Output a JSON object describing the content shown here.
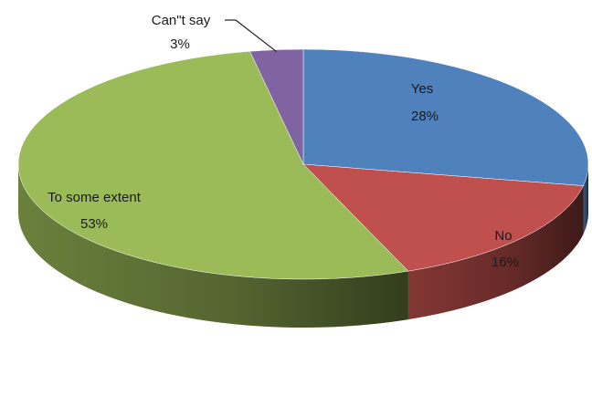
{
  "chart_data": {
    "type": "pie",
    "style": "3d",
    "title": "",
    "slices": [
      {
        "label": "Yes",
        "pct_label": "28%",
        "value": 28,
        "color": "#4f81bd"
      },
      {
        "label": "No",
        "pct_label": "16%",
        "value": 16,
        "color": "#c0504d"
      },
      {
        "label": "To some extent",
        "pct_label": "53%",
        "value": 53,
        "color": "#9bbb59"
      },
      {
        "label": "Can\"t say",
        "pct_label": "3%",
        "value": 3,
        "color": "#8064a2"
      }
    ],
    "legend": "none"
  }
}
